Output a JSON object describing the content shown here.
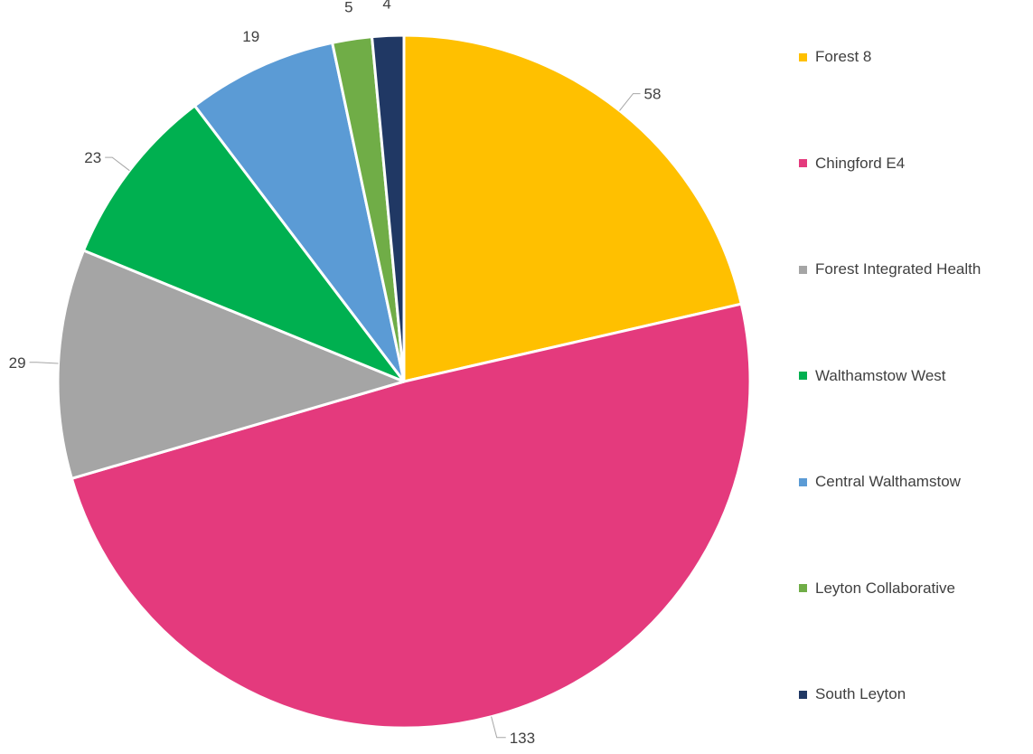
{
  "chart_data": {
    "type": "pie",
    "title": "",
    "categories": [
      "Forest 8",
      "Chingford E4",
      "Forest Integrated Health",
      "Walthamstow West",
      "Central Walthamstow",
      "Leyton Collaborative",
      "South Leyton"
    ],
    "values": [
      58,
      133,
      29,
      23,
      19,
      5,
      4
    ],
    "value_labels": [
      "58",
      "133",
      "29",
      "23",
      "19",
      "5",
      "4"
    ],
    "colors": [
      "#FFC000",
      "#E43A7D",
      "#A5A5A5",
      "#00B050",
      "#5B9BD5",
      "#70AD47",
      "#203864"
    ],
    "legend_position": "right",
    "show_data_labels": true
  }
}
